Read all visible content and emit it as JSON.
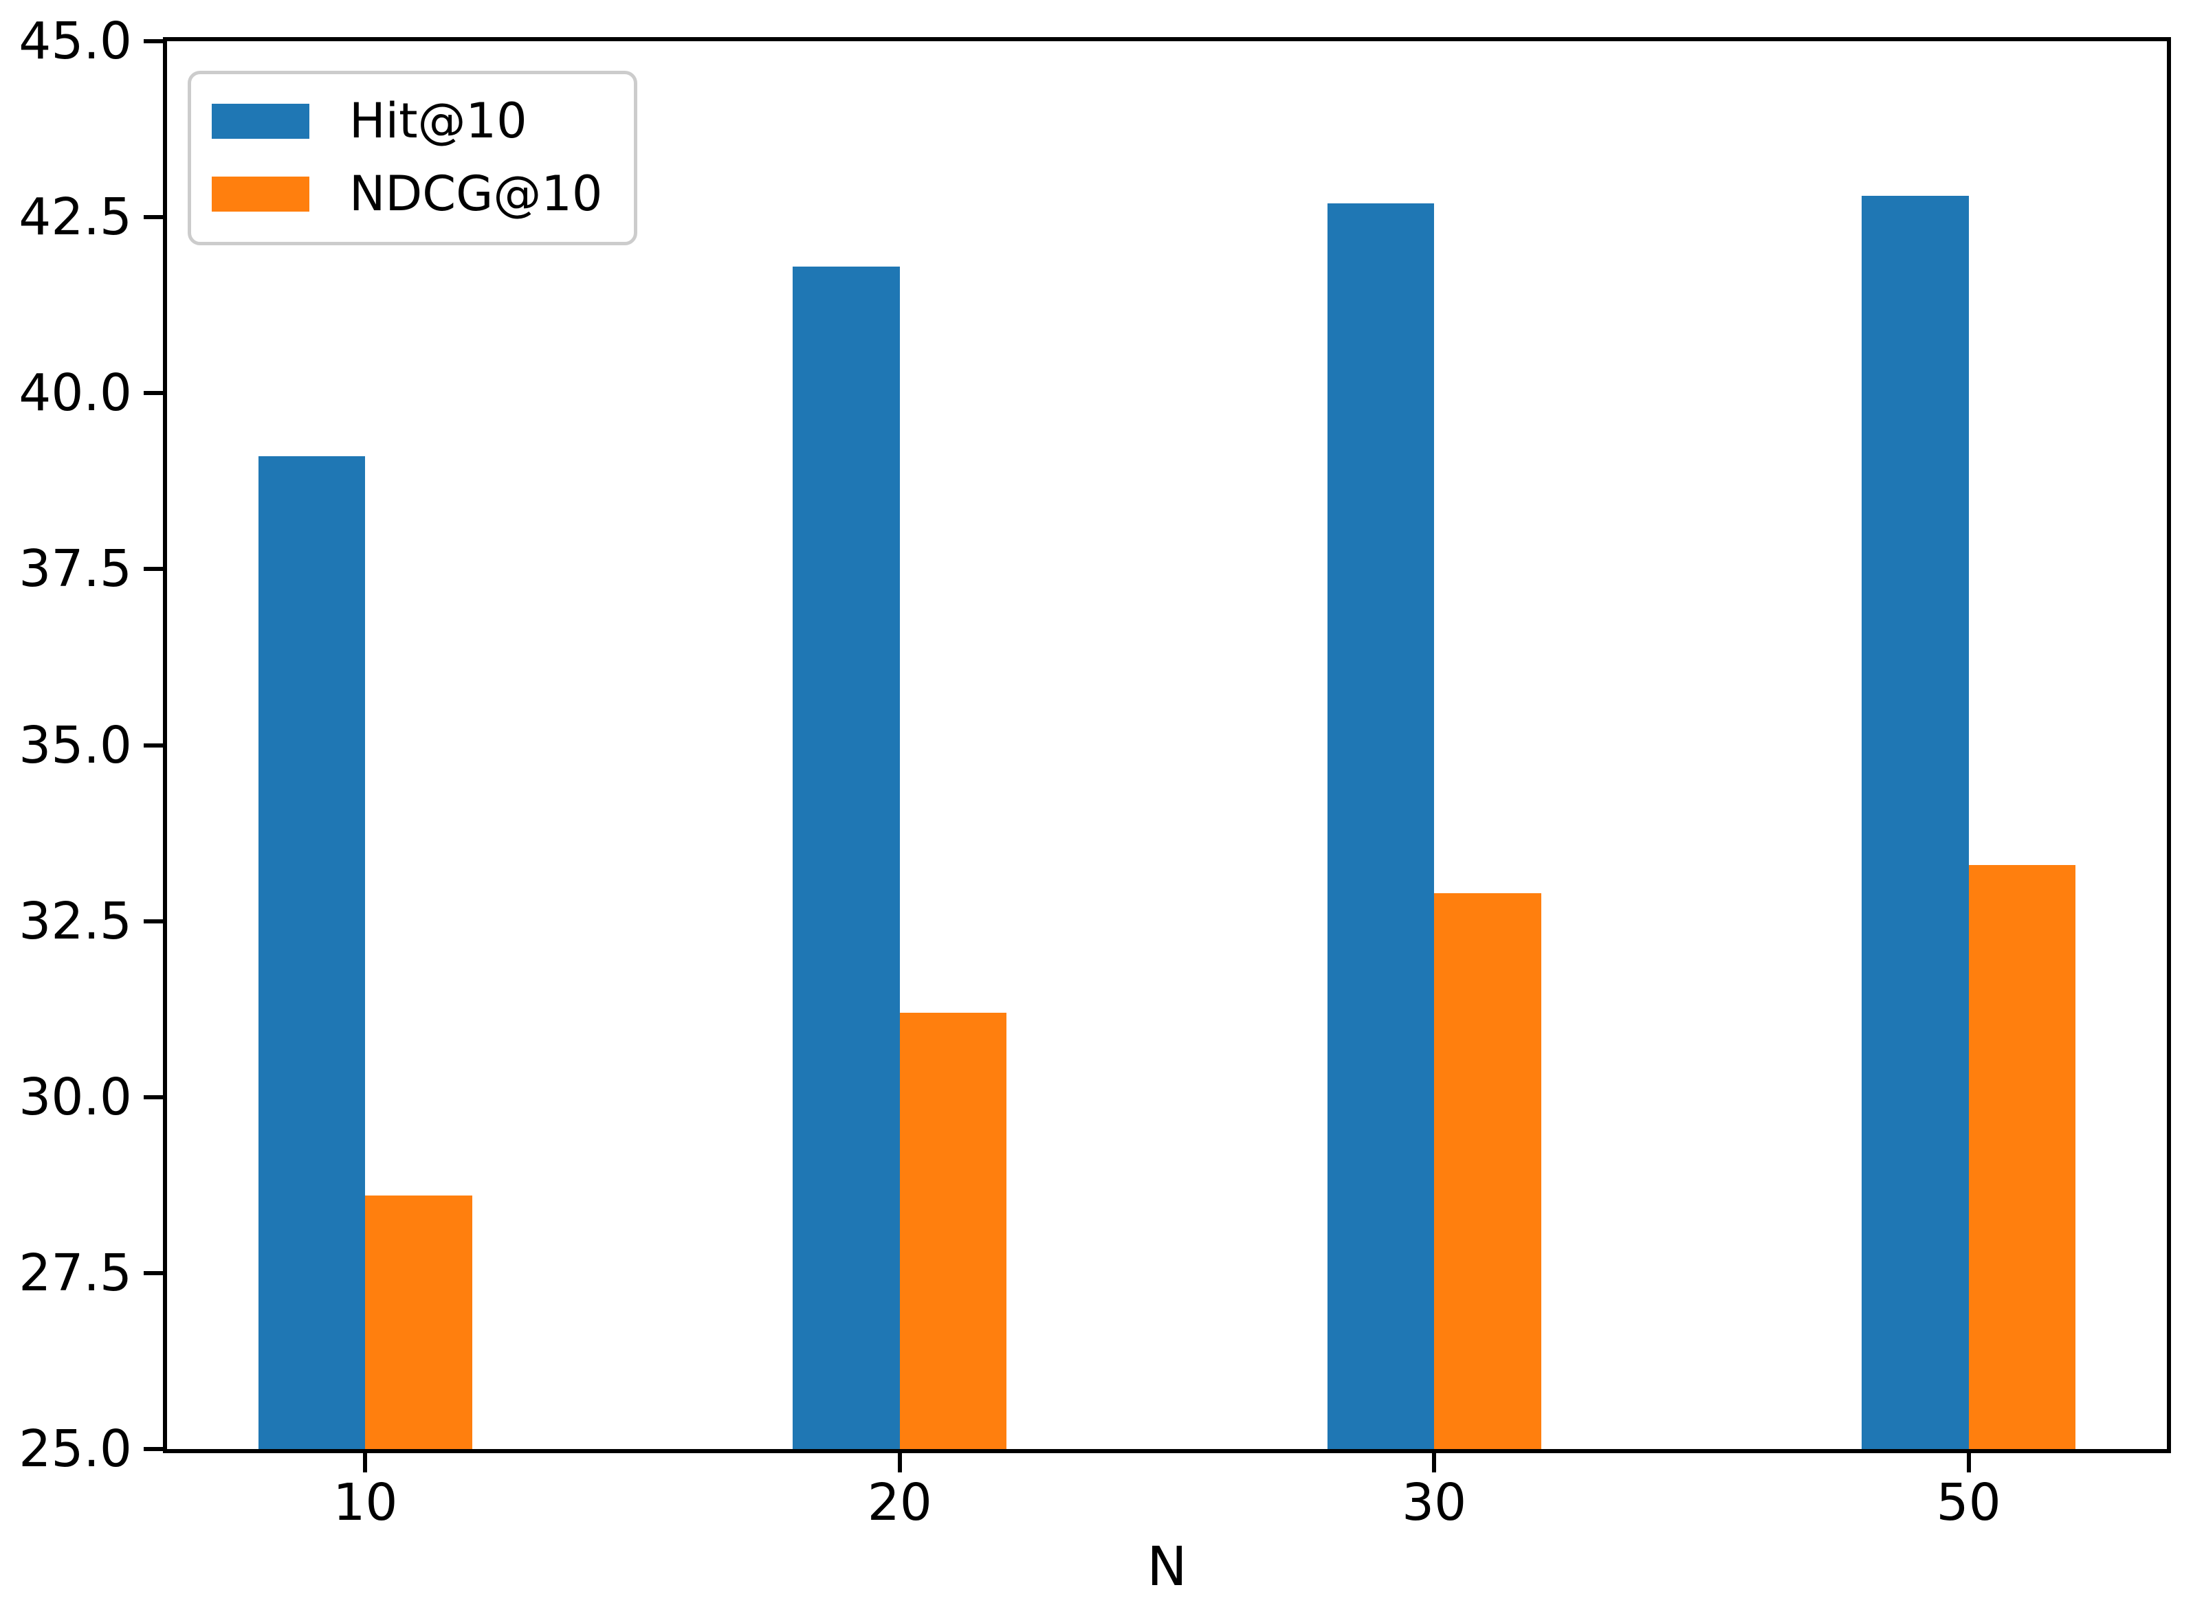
{
  "figure": {
    "background": "#ffffff",
    "text_color": "#000000",
    "spine_color": "#000000",
    "legend_border_color": "#cccccc"
  },
  "chart_data": {
    "type": "bar",
    "title": "",
    "xlabel": "N",
    "ylabel": "",
    "categories": [
      "10",
      "20",
      "30",
      "50"
    ],
    "series": [
      {
        "name": "Hit@10",
        "color": "#1f77b4",
        "values": [
          39.1,
          41.8,
          42.7,
          42.8
        ]
      },
      {
        "name": "NDCG@10",
        "color": "#ff7f0e",
        "values": [
          28.6,
          31.2,
          32.9,
          33.3
        ]
      }
    ],
    "ylim": [
      25.0,
      45.0
    ],
    "ytick_labels": [
      "25.0",
      "27.5",
      "30.0",
      "32.5",
      "35.0",
      "37.5",
      "40.0",
      "42.5",
      "45.0"
    ],
    "xlim": [
      -0.371,
      3.371
    ],
    "bar_width_axis_units": 0.2,
    "series_offsets_axis_units": [
      -0.1,
      0.1
    ],
    "grid": false,
    "legend": {
      "position": "upper left",
      "entries": [
        "Hit@10",
        "NDCG@10"
      ]
    }
  }
}
